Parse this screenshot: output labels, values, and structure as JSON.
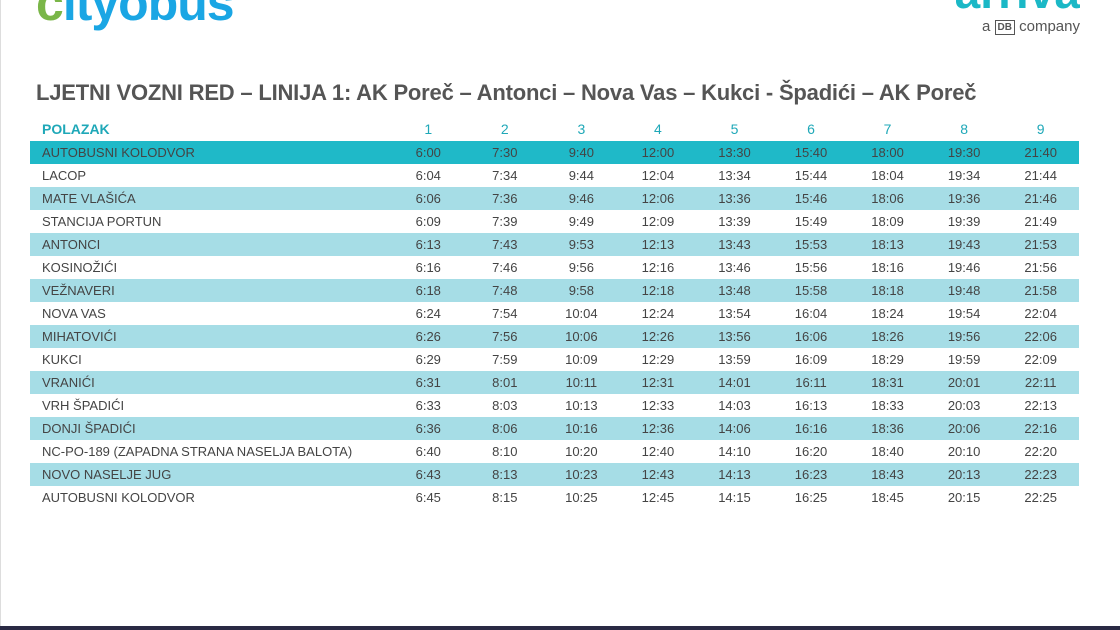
{
  "logos": {
    "cityobus": {
      "first": "c",
      "rest": "ityobus"
    },
    "arriva": {
      "name": "arriva",
      "tagline_pre": "a",
      "tagline_db": "DB",
      "tagline_post": "company"
    }
  },
  "title": "LJETNI VOZNI RED – LINIJA 1: AK Poreč – Antonci – Nova Vas – Kukci - Špadići – AK Poreč",
  "colors": {
    "accent": "#1fb9c8",
    "alt_row": "#a6dde6",
    "header_text": "#1fa8b8"
  },
  "table": {
    "header": "POLAZAK",
    "departures": [
      "1",
      "2",
      "3",
      "4",
      "5",
      "6",
      "7",
      "8",
      "9"
    ],
    "rows": [
      {
        "stop": "AUTOBUSNI KOLODVOR",
        "times": [
          "6:00",
          "7:30",
          "9:40",
          "12:00",
          "13:30",
          "15:40",
          "18:00",
          "19:30",
          "21:40"
        ]
      },
      {
        "stop": "LACOP",
        "times": [
          "6:04",
          "7:34",
          "9:44",
          "12:04",
          "13:34",
          "15:44",
          "18:04",
          "19:34",
          "21:44"
        ]
      },
      {
        "stop": "MATE VLAŠIĆA",
        "times": [
          "6:06",
          "7:36",
          "9:46",
          "12:06",
          "13:36",
          "15:46",
          "18:06",
          "19:36",
          "21:46"
        ]
      },
      {
        "stop": "STANCIJA PORTUN",
        "times": [
          "6:09",
          "7:39",
          "9:49",
          "12:09",
          "13:39",
          "15:49",
          "18:09",
          "19:39",
          "21:49"
        ]
      },
      {
        "stop": "ANTONCI",
        "times": [
          "6:13",
          "7:43",
          "9:53",
          "12:13",
          "13:43",
          "15:53",
          "18:13",
          "19:43",
          "21:53"
        ]
      },
      {
        "stop": "KOSINOŽIĆI",
        "times": [
          "6:16",
          "7:46",
          "9:56",
          "12:16",
          "13:46",
          "15:56",
          "18:16",
          "19:46",
          "21:56"
        ]
      },
      {
        "stop": "VEŽNAVERI",
        "times": [
          "6:18",
          "7:48",
          "9:58",
          "12:18",
          "13:48",
          "15:58",
          "18:18",
          "19:48",
          "21:58"
        ]
      },
      {
        "stop": "NOVA VAS",
        "times": [
          "6:24",
          "7:54",
          "10:04",
          "12:24",
          "13:54",
          "16:04",
          "18:24",
          "19:54",
          "22:04"
        ]
      },
      {
        "stop": "MIHATOVIĆI",
        "times": [
          "6:26",
          "7:56",
          "10:06",
          "12:26",
          "13:56",
          "16:06",
          "18:26",
          "19:56",
          "22:06"
        ]
      },
      {
        "stop": "KUKCI",
        "times": [
          "6:29",
          "7:59",
          "10:09",
          "12:29",
          "13:59",
          "16:09",
          "18:29",
          "19:59",
          "22:09"
        ]
      },
      {
        "stop": "VRANIĆI",
        "times": [
          "6:31",
          "8:01",
          "10:11",
          "12:31",
          "14:01",
          "16:11",
          "18:31",
          "20:01",
          "22:11"
        ]
      },
      {
        "stop": "VRH ŠPADIĆI",
        "times": [
          "6:33",
          "8:03",
          "10:13",
          "12:33",
          "14:03",
          "16:13",
          "18:33",
          "20:03",
          "22:13"
        ]
      },
      {
        "stop": "DONJI ŠPADIĆI",
        "times": [
          "6:36",
          "8:06",
          "10:16",
          "12:36",
          "14:06",
          "16:16",
          "18:36",
          "20:06",
          "22:16"
        ]
      },
      {
        "stop": "NC-PO-189 (ZAPADNA STRANA NASELJA BALOTA)",
        "times": [
          "6:40",
          "8:10",
          "10:20",
          "12:40",
          "14:10",
          "16:20",
          "18:40",
          "20:10",
          "22:20"
        ]
      },
      {
        "stop": "NOVO NASELJE JUG",
        "times": [
          "6:43",
          "8:13",
          "10:23",
          "12:43",
          "14:13",
          "16:23",
          "18:43",
          "20:13",
          "22:23"
        ]
      },
      {
        "stop": "AUTOBUSNI KOLODVOR",
        "times": [
          "6:45",
          "8:15",
          "10:25",
          "12:45",
          "14:15",
          "16:25",
          "18:45",
          "20:15",
          "22:25"
        ]
      }
    ]
  }
}
